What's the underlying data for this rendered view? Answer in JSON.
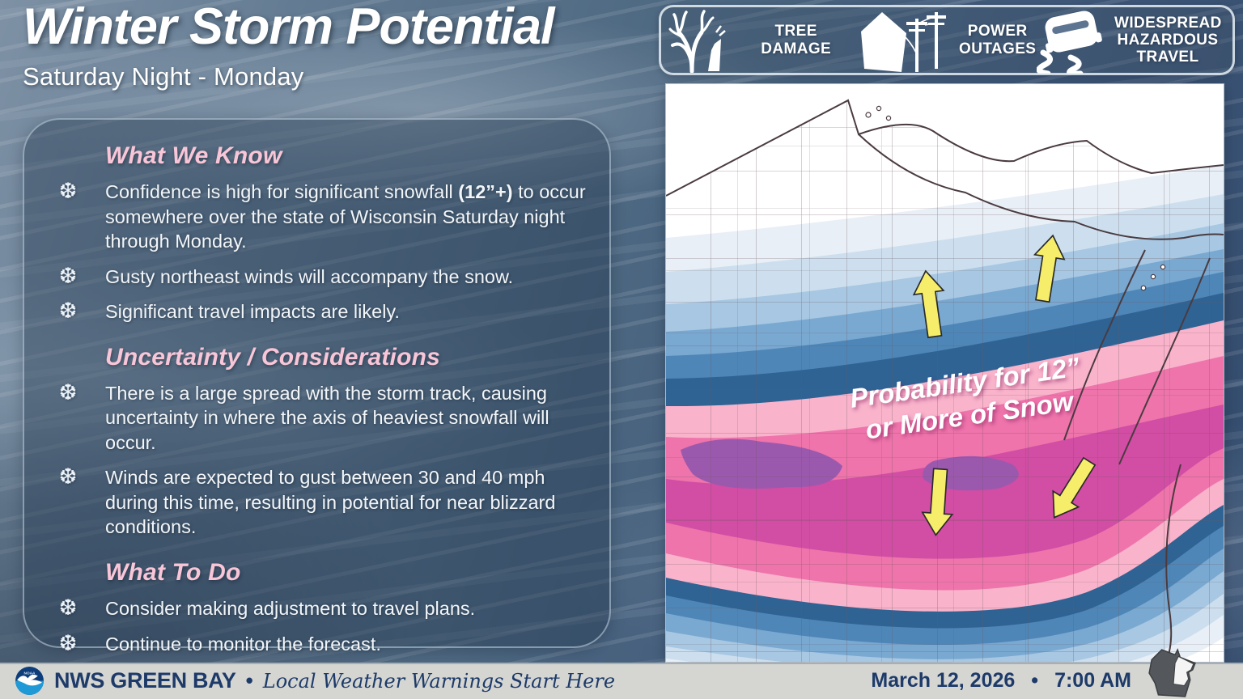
{
  "header": {
    "title": "Winter Storm Potential",
    "subtitle": "Saturday Night - Monday"
  },
  "hazards": {
    "items": [
      {
        "icon": "tree-damage-icon",
        "label": "TREE DAMAGE"
      },
      {
        "icon": "power-outage-icon",
        "label": "POWER OUTAGES"
      },
      {
        "icon": "hazardous-travel-icon",
        "label": "WIDESPREAD HAZARDOUS TRAVEL"
      }
    ]
  },
  "panel": {
    "bullet_icon": "❆",
    "sections": [
      {
        "heading": "What We Know",
        "bullets": [
          {
            "parts": [
              {
                "t": "Confidence is high for significant snowfall "
              },
              {
                "t": "(12”+)",
                "b": true
              },
              {
                "t": " to occur somewhere over the state of Wisconsin Saturday night through Monday."
              }
            ]
          },
          {
            "parts": [
              {
                "t": "Gusty northeast winds will accompany the snow."
              }
            ]
          },
          {
            "parts": [
              {
                "t": "Significant travel impacts are likely."
              }
            ]
          }
        ]
      },
      {
        "heading": "Uncertainty / Considerations",
        "bullets": [
          {
            "parts": [
              {
                "t": "There is a large spread with the storm track, causing uncertainty in where the axis of heaviest snowfall will occur."
              }
            ]
          },
          {
            "parts": [
              {
                "t": "Winds are expected to gust between 30 and 40 mph during this time, resulting in potential for near blizzard conditions."
              }
            ]
          }
        ]
      },
      {
        "heading": "What To Do",
        "bullets": [
          {
            "parts": [
              {
                "t": "Consider making adjustment to travel plans."
              }
            ]
          },
          {
            "parts": [
              {
                "t": "Continue to monitor the forecast."
              }
            ]
          }
        ]
      }
    ]
  },
  "map": {
    "label_line1": "Probability for 12”",
    "label_line2": "or More of Snow",
    "arrow_color": "#f6ee6b",
    "purple_core": "#9b59ae",
    "band_colors_north": [
      "#e9eff6",
      "#cddfee",
      "#a7c7e2",
      "#79a8d1",
      "#4e86b8",
      "#2e6394",
      "#f9b3cb",
      "#ee74ab",
      "#d24da4"
    ],
    "band_colors_south": [
      "#ee74ab",
      "#f9b3cb",
      "#2e6394",
      "#4e86b8",
      "#79a8d1",
      "#a7c7e2",
      "#cddfee",
      "#e9eff6",
      "#ffffff"
    ]
  },
  "footer": {
    "noaa_label": "NOAA",
    "agency": "NWS GREEN BAY",
    "separator": "•",
    "tagline": "Local Weather Warnings Start Here",
    "date": "March 12, 2026",
    "time": "7:00 AM"
  },
  "colors": {
    "heading_pink": "#f9c6d8",
    "navy": "#1d3a69",
    "footer_bg": "#d5d6d2",
    "noaa_dark_blue": "#0d3d7a",
    "noaa_light_blue": "#1f9ad6",
    "state_icon_gray": "#54585c"
  }
}
